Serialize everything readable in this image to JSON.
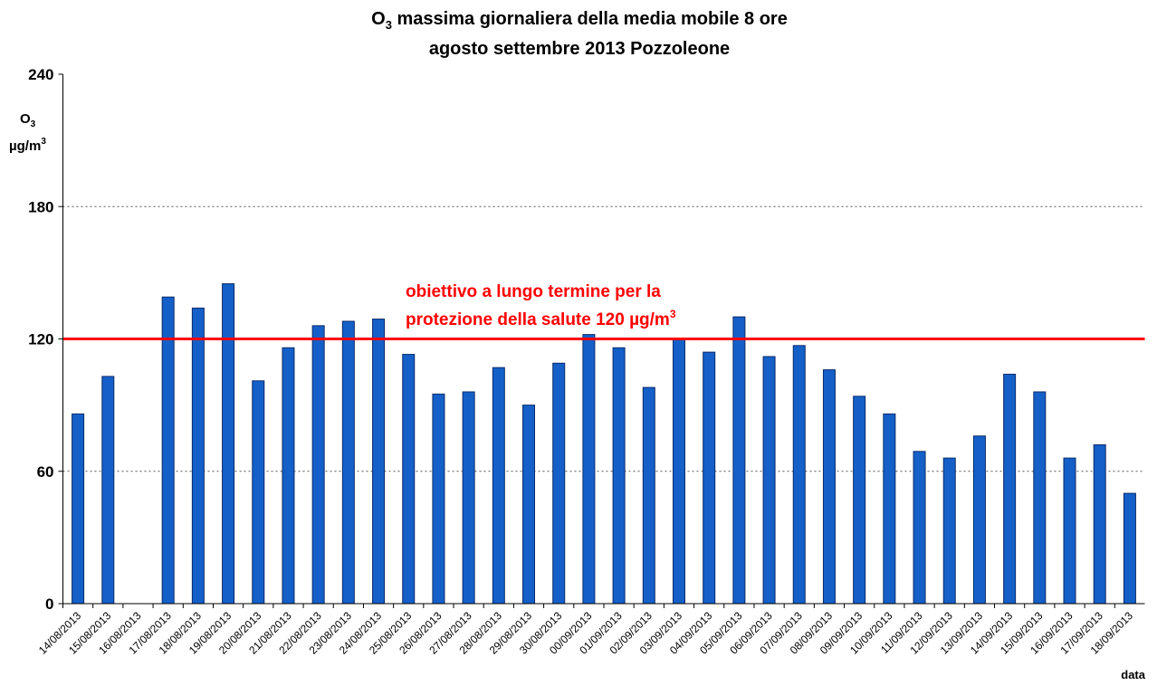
{
  "chart_data": {
    "type": "bar",
    "title": {
      "line1_a": "O",
      "line1_sub": "3",
      "line1_b": " massima giornaliera della media mobile 8 ore",
      "line2": "agosto settembre 2013 Pozzoleone"
    },
    "ylabel": {
      "line1": "O",
      "line1_sub": "3",
      "line2": "µg/m",
      "line2_sup": "3"
    },
    "xlabel": "data",
    "categories": [
      "14/08/2013",
      "15/08/2013",
      "16/08/2013",
      "17/08/2013",
      "18/08/2013",
      "19/08/2013",
      "20/08/2013",
      "21/08/2013",
      "22/08/2013",
      "23/08/2013",
      "24/08/2013",
      "25/08/2013",
      "26/08/2013",
      "27/08/2013",
      "28/08/2013",
      "29/08/2013",
      "30/08/2013",
      "00/09/2013",
      "01/09/2013",
      "02/09/2013",
      "03/09/2013",
      "04/09/2013",
      "05/09/2013",
      "06/09/2013",
      "07/09/2013",
      "08/09/2013",
      "09/09/2013",
      "10/09/2013",
      "11/09/2013",
      "12/09/2013",
      "13/09/2013",
      "14/09/2013",
      "15/09/2013",
      "16/09/2013",
      "17/09/2013",
      "18/09/2013"
    ],
    "values": [
      86,
      103,
      null,
      139,
      134,
      145,
      101,
      116,
      126,
      128,
      129,
      113,
      95,
      96,
      107,
      90,
      109,
      122,
      116,
      98,
      120,
      114,
      130,
      112,
      117,
      106,
      94,
      86,
      69,
      66,
      76,
      104,
      96,
      66,
      72,
      50
    ],
    "color": "#1560c8",
    "ylim": [
      0,
      240
    ],
    "yticks": [
      0,
      60,
      120,
      180,
      240
    ],
    "grid": true,
    "threshold": {
      "value": 120,
      "color": "#ff0000",
      "line1": "obiettivo a lungo termine per la",
      "line2": "protezione della salute 120 µg/m",
      "line2_sup": "3"
    }
  }
}
